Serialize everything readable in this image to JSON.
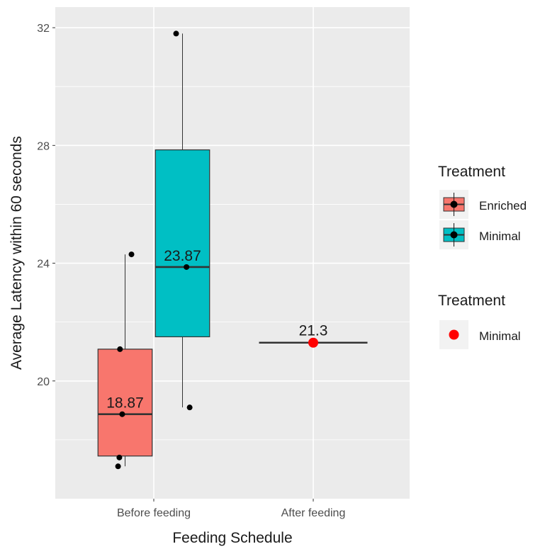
{
  "chart_data": {
    "type": "box",
    "xlabel": "Feeding Schedule",
    "ylabel": "Average Latency within 60 seconds",
    "categories": [
      "Before feeding",
      "After feeding"
    ],
    "ylim": [
      16.0,
      32.7
    ],
    "yticks": [
      20,
      24,
      28,
      32
    ],
    "grid": true,
    "boxes": [
      {
        "category": "Before feeding",
        "treatment": "Enriched",
        "color": "#F8766D",
        "min": 17.1,
        "q1": 17.45,
        "median": 18.87,
        "q3": 21.08,
        "max": 24.3,
        "label": "18.87",
        "points": [
          [
            -0.032,
            21.08
          ],
          [
            -0.018,
            18.87
          ],
          [
            -0.044,
            17.1
          ],
          [
            -0.036,
            17.4
          ],
          [
            0.04,
            24.3
          ]
        ]
      },
      {
        "category": "Before feeding",
        "treatment": "Minimal",
        "color": "#00BFC4",
        "min": 19.1,
        "q1": 21.5,
        "median": 23.87,
        "q3": 27.85,
        "max": 31.8,
        "label": "23.87",
        "points": [
          [
            -0.04,
            31.8
          ],
          [
            0.025,
            23.87
          ],
          [
            0.045,
            19.1
          ]
        ]
      }
    ],
    "after": {
      "category": "After feeding",
      "treatment": "Minimal",
      "value": 21.3,
      "label": "21.3",
      "color": "#FF0000"
    },
    "legends": [
      {
        "title": "Treatment",
        "items": [
          {
            "label": "Enriched",
            "color": "#F8766D"
          },
          {
            "label": "Minimal",
            "color": "#00BFC4"
          }
        ]
      },
      {
        "title": "Treatment",
        "items": [
          {
            "label": "Minimal",
            "color": "#FF0000"
          }
        ]
      }
    ],
    "legend_position": "right"
  }
}
